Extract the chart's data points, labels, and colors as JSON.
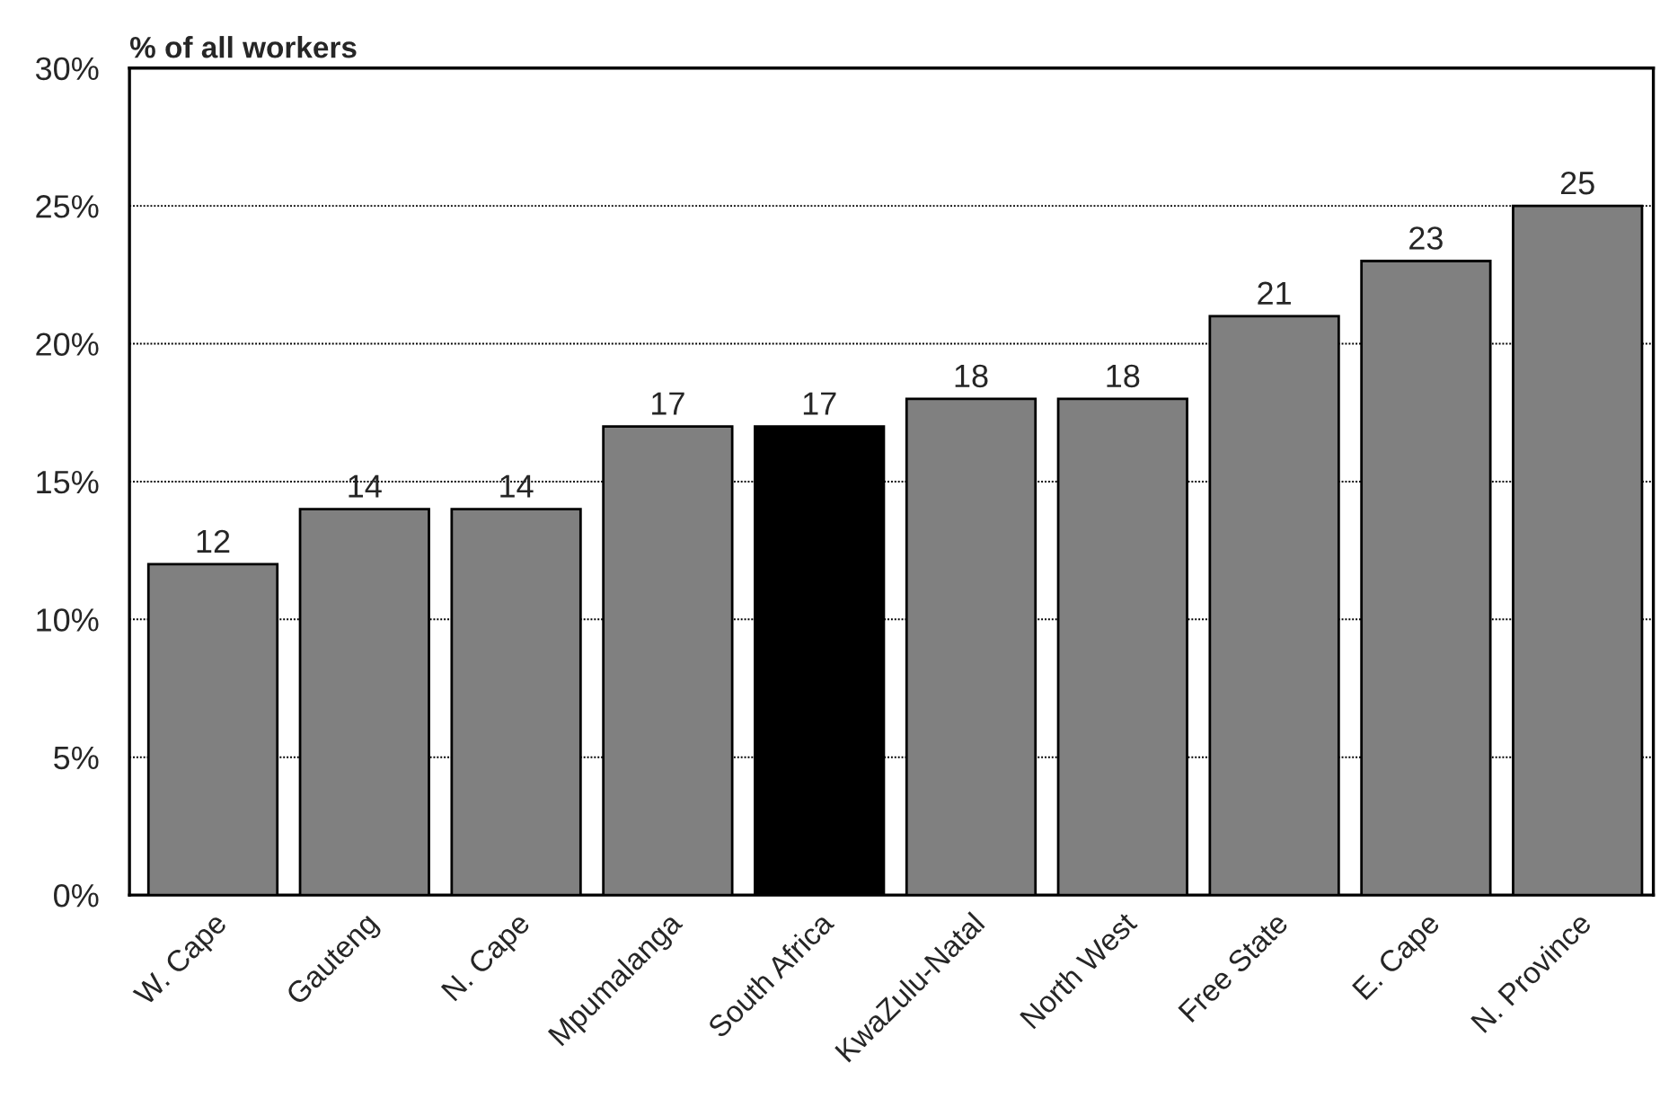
{
  "chart_data": {
    "type": "bar",
    "ylabel": "% of all workers",
    "categories": [
      "W. Cape",
      "Gauteng",
      "N. Cape",
      "Mpumalanga",
      "South Africa",
      "KwaZulu-Natal",
      "North West",
      "Free State",
      "E. Cape",
      "N. Province"
    ],
    "values": [
      12,
      14,
      14,
      17,
      17,
      18,
      18,
      21,
      23,
      25
    ],
    "colors": [
      "#808080",
      "#808080",
      "#808080",
      "#808080",
      "#000000",
      "#808080",
      "#808080",
      "#808080",
      "#808080",
      "#808080"
    ],
    "ylim": [
      0,
      30
    ],
    "yticks": [
      {
        "value": 0,
        "label": "0%"
      },
      {
        "value": 5,
        "label": "5%"
      },
      {
        "value": 10,
        "label": "10%"
      },
      {
        "value": 15,
        "label": "15%"
      },
      {
        "value": 20,
        "label": "20%"
      },
      {
        "value": 25,
        "label": "25%"
      },
      {
        "value": 30,
        "label": "30%"
      }
    ],
    "grid": "y",
    "data_labels": true
  }
}
